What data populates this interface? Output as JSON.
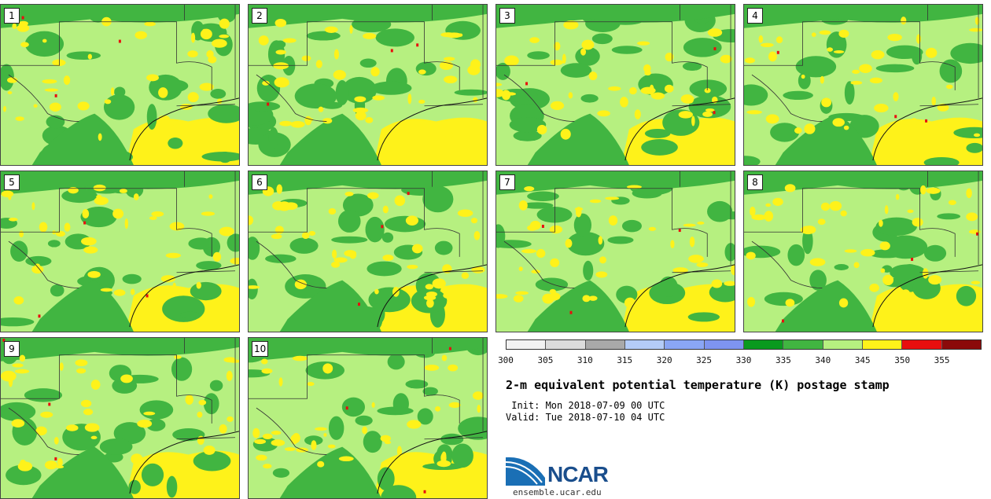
{
  "panels": [
    {
      "label": "1"
    },
    {
      "label": "2"
    },
    {
      "label": "3"
    },
    {
      "label": "4"
    },
    {
      "label": "5"
    },
    {
      "label": "6"
    },
    {
      "label": "7"
    },
    {
      "label": "8"
    },
    {
      "label": "9"
    },
    {
      "label": "10"
    }
  ],
  "colorbar": {
    "colors": [
      "#f2f2f2",
      "#dcdcdc",
      "#a9a9a9",
      "#b4ccf8",
      "#8aa6f5",
      "#7e94f0",
      "#0a9a1e",
      "#41b541",
      "#b6f080",
      "#fef21a",
      "#e80e0e",
      "#8b0a0a"
    ],
    "ticks": [
      "300",
      "305",
      "310",
      "315",
      "320",
      "325",
      "330",
      "335",
      "340",
      "345",
      "350",
      "355"
    ]
  },
  "title": "2-m equivalent potential temperature (K) postage stamp",
  "init": " Init: Mon 2018-07-09 00 UTC",
  "valid": "Valid: Tue 2018-07-10 04 UTC",
  "logo": {
    "text": "NCAR",
    "url": "ensemble.ucar.edu"
  }
}
